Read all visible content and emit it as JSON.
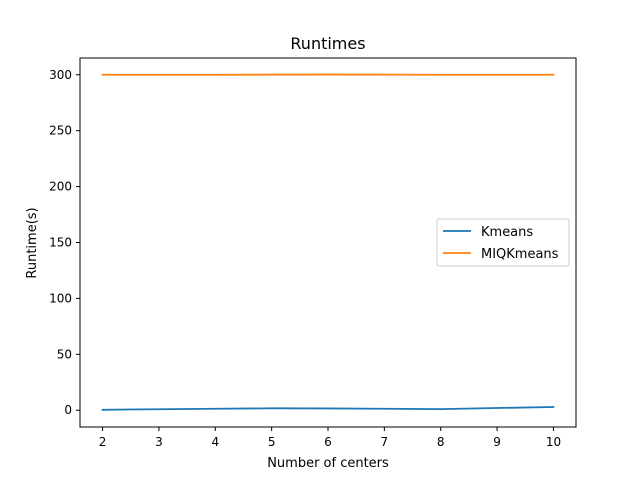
{
  "chart_data": {
    "type": "line",
    "title": "Runtimes",
    "xlabel": "Number of centers",
    "ylabel": "Runtime(s)",
    "x": [
      2,
      3,
      4,
      5,
      6,
      7,
      8,
      9,
      10
    ],
    "xlim": [
      1.6,
      10.4
    ],
    "ylim": [
      -15,
      315
    ],
    "xticks": [
      2,
      3,
      4,
      5,
      6,
      7,
      8,
      9,
      10
    ],
    "yticks": [
      0,
      50,
      100,
      150,
      200,
      250,
      300
    ],
    "grid": false,
    "legend_position": "center-right",
    "series": [
      {
        "name": "Kmeans",
        "color": "#1f77b4",
        "values": [
          0.4,
          0.9,
          1.3,
          1.7,
          1.6,
          1.3,
          1.0,
          2.0,
          2.9
        ]
      },
      {
        "name": "MIQKmeans",
        "color": "#ff7f0e",
        "values": [
          300.0,
          300.0,
          300.0,
          300.1,
          300.2,
          300.1,
          300.0,
          300.0,
          300.0
        ]
      }
    ]
  }
}
